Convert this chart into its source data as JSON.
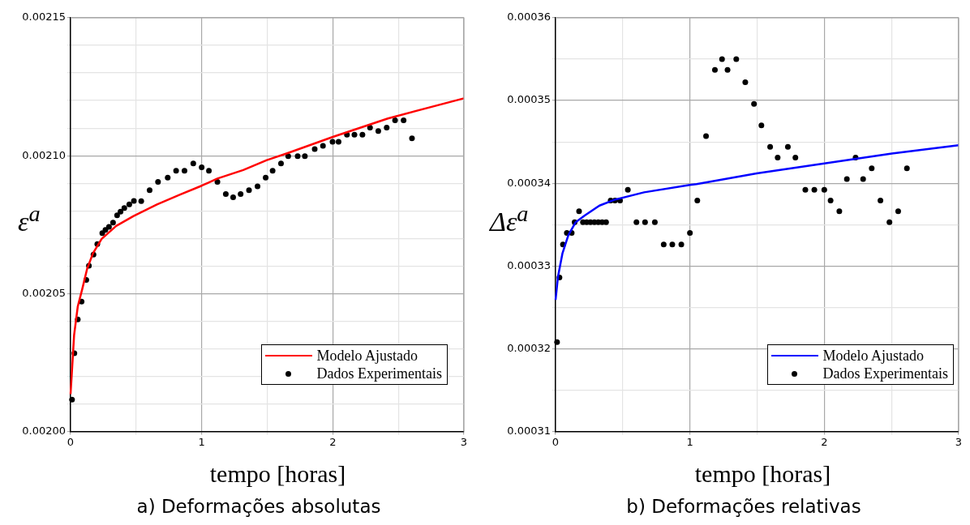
{
  "chart_data": [
    {
      "type": "scatter",
      "title": "a) Deformações absolutas",
      "xlabel": "tempo [horas]",
      "ylabel": "ε$^{a}$",
      "legend": "bottom right",
      "grid": true,
      "xlim": [
        0,
        3
      ],
      "xticks": [
        0,
        {
          "value": 0.5,
          "label": null
        },
        1,
        {
          "value": 1.5,
          "label": null
        },
        2,
        {
          "value": 2.5,
          "label": null
        },
        3
      ],
      "ylim": [
        0.002,
        0.00215
      ],
      "yticks": [
        {
          "value": 0.002,
          "label": "0.00200"
        },
        {
          "value": 0.00201,
          "label": null
        },
        {
          "value": 0.00202,
          "label": null
        },
        {
          "value": 0.00203,
          "label": null
        },
        {
          "value": 0.00204,
          "label": null
        },
        {
          "value": 0.00205,
          "label": "0.00205"
        },
        {
          "value": 0.00206,
          "label": null
        },
        {
          "value": 0.00207,
          "label": null
        },
        {
          "value": 0.00208,
          "label": null
        },
        {
          "value": 0.00209,
          "label": null
        },
        {
          "value": 0.0021,
          "label": "0.00210"
        },
        {
          "value": 0.00211,
          "label": null
        },
        {
          "value": 0.00212,
          "label": null
        },
        {
          "value": 0.00213,
          "label": null
        },
        {
          "value": 0.00214,
          "label": null
        },
        {
          "value": 0.00215,
          "label": "0.00215"
        }
      ],
      "series": [
        {
          "name": "Modelo Ajustado",
          "type": "line",
          "color": "#ff0000",
          "marker": "none",
          "x": [
            0,
            0.027,
            0.055,
            0.089,
            0.126,
            0.171,
            0.237,
            0.348,
            0.481,
            0.659,
            0.836,
            1.0,
            1.12,
            1.317,
            1.497,
            1.66,
            2.0,
            2.42,
            3.0
          ],
          "values": [
            0.0020135,
            0.0020349,
            0.0020453,
            0.0020516,
            0.0020589,
            0.0020646,
            0.0020698,
            0.0020745,
            0.0020781,
            0.0020823,
            0.0020859,
            0.0020891,
            0.0020917,
            0.0020948,
            0.0020984,
            0.002101,
            0.0021068,
            0.0021135,
            0.0021208
          ]
        },
        {
          "name": "Dados Experimentais",
          "color": "#000000",
          "marker": "circle",
          "x": [
            0.011,
            0.029,
            0.055,
            0.084,
            0.12,
            0.14,
            0.175,
            0.204,
            0.242,
            0.266,
            0.293,
            0.324,
            0.355,
            0.381,
            0.41,
            0.448,
            0.483,
            0.539,
            0.603,
            0.667,
            0.741,
            0.805,
            0.869,
            0.936,
            1.0,
            1.055,
            1.12,
            1.184,
            1.24,
            1.297,
            1.361,
            1.426,
            1.488,
            1.541,
            1.605,
            1.66,
            1.732,
            1.787,
            1.862,
            1.925,
            1.998,
            2.044,
            2.108,
            2.165,
            2.226,
            2.284,
            2.347,
            2.411,
            2.475,
            2.54,
            2.604
          ],
          "values": [
            0.0020115,
            0.0020283,
            0.0020406,
            0.0020471,
            0.0020549,
            0.0020601,
            0.0020641,
            0.0020679,
            0.0020719,
            0.0020731,
            0.0020742,
            0.0020757,
            0.0020784,
            0.0020797,
            0.002081,
            0.0020823,
            0.0020836,
            0.0020835,
            0.0020875,
            0.0020905,
            0.002092,
            0.0020945,
            0.0020945,
            0.0020972,
            0.0020958,
            0.0020945,
            0.0020905,
            0.0020861,
            0.0020849,
            0.0020861,
            0.0020875,
            0.0020889,
            0.002092,
            0.0020945,
            0.0020972,
            0.0020998,
            0.0020998,
            0.0020998,
            0.0021024,
            0.0021036,
            0.002105,
            0.002105,
            0.0021076,
            0.0021076,
            0.0021076,
            0.0021102,
            0.0021089,
            0.0021102,
            0.0021128,
            0.0021128,
            0.0021063
          ]
        }
      ]
    },
    {
      "type": "scatter",
      "title": "b) Deformações relativas",
      "xlabel": "tempo [horas]",
      "ylabel": "Δε$^{a}$",
      "legend": "bottom right",
      "grid": true,
      "xlim": [
        0,
        3
      ],
      "xticks": [
        0,
        {
          "value": 0.5,
          "label": null
        },
        1,
        {
          "value": 1.5,
          "label": null
        },
        2,
        {
          "value": 2.5,
          "label": null
        },
        3
      ],
      "ylim": [
        0.00031,
        0.00036
      ],
      "yticks": [
        0.00031,
        {
          "value": 0.000315,
          "label": null
        },
        0.00032,
        {
          "value": 0.000325,
          "label": null
        },
        0.00033,
        {
          "value": 0.000335,
          "label": null
        },
        0.00034,
        {
          "value": 0.000345,
          "label": null
        },
        0.00035,
        {
          "value": 0.000355,
          "label": null
        },
        0.00036
      ],
      "series": [
        {
          "name": "Modelo Ajustado",
          "type": "line",
          "color": "#0000ff",
          "marker": "none",
          "x": [
            0,
            0.018,
            0.051,
            0.095,
            0.15,
            0.217,
            0.327,
            0.438,
            0.659,
            1.0,
            1.049,
            1.497,
            2.0,
            2.503,
            3.0
          ],
          "values": [
            0.0003259,
            0.0003287,
            0.0003315,
            0.0003337,
            0.0003353,
            0.0003361,
            0.0003373,
            0.000338,
            0.0003389,
            0.0003398,
            0.0003399,
            0.0003412,
            0.0003424,
            0.0003436,
            0.0003446
          ]
        },
        {
          "name": "Dados Experimentais",
          "color": "#000000",
          "marker": "circle",
          "x": [
            0.011,
            0.029,
            0.055,
            0.084,
            0.12,
            0.142,
            0.175,
            0.204,
            0.232,
            0.26,
            0.289,
            0.318,
            0.347,
            0.376,
            0.41,
            0.442,
            0.48,
            0.538,
            0.602,
            0.666,
            0.739,
            0.805,
            0.869,
            0.936,
            1.0,
            1.055,
            1.12,
            1.186,
            1.239,
            1.28,
            1.345,
            1.412,
            1.477,
            1.532,
            1.597,
            1.653,
            1.729,
            1.785,
            1.859,
            1.926,
            2.0,
            2.047,
            2.112,
            2.168,
            2.233,
            2.289,
            2.353,
            2.418,
            2.485,
            2.55,
            2.615
          ],
          "values": [
            0.0003208,
            0.0003286,
            0.0003326,
            0.000334,
            0.000334,
            0.0003353,
            0.0003366,
            0.0003353,
            0.0003353,
            0.0003353,
            0.0003353,
            0.0003353,
            0.0003353,
            0.0003353,
            0.0003379,
            0.0003379,
            0.0003379,
            0.0003392,
            0.0003353,
            0.0003353,
            0.0003353,
            0.0003326,
            0.0003326,
            0.0003326,
            0.000334,
            0.0003379,
            0.0003457,
            0.0003537,
            0.000355,
            0.0003537,
            0.000355,
            0.0003522,
            0.0003496,
            0.000347,
            0.0003444,
            0.0003431,
            0.0003444,
            0.0003431,
            0.0003392,
            0.0003392,
            0.0003392,
            0.0003379,
            0.0003366,
            0.0003405,
            0.0003431,
            0.0003405,
            0.0003418,
            0.0003379,
            0.0003353,
            0.0003366,
            0.0003418
          ]
        }
      ]
    }
  ]
}
